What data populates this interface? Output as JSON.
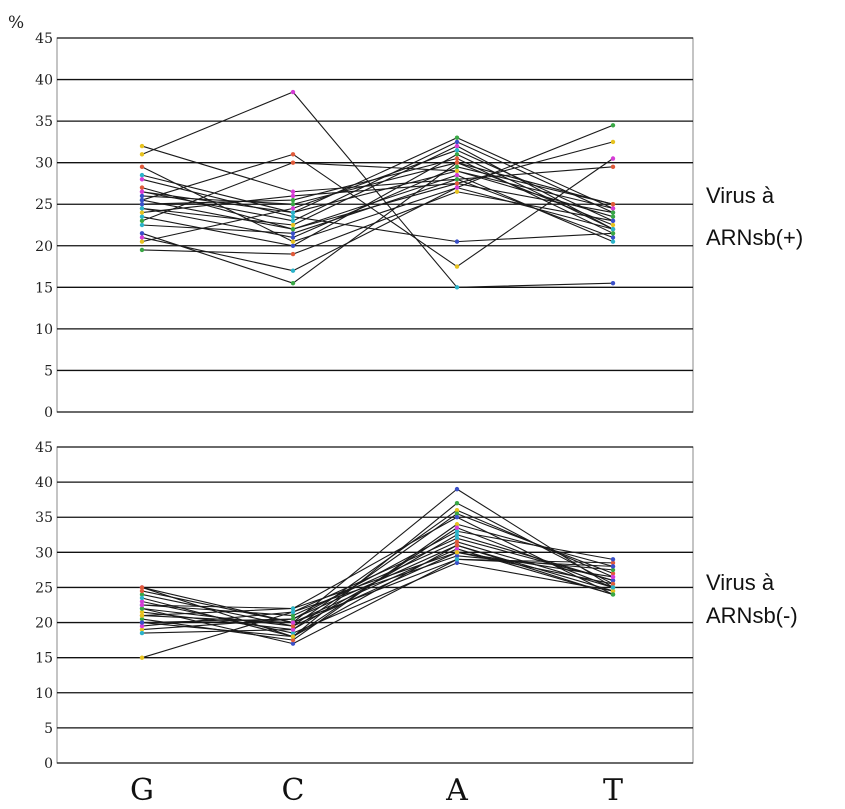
{
  "figure": {
    "unit_label": "%",
    "categories": [
      "G",
      "C",
      "A",
      "T"
    ]
  },
  "chart_data": [
    {
      "type": "line",
      "group_label": [
        "Virus à",
        "ARNsb(+)"
      ],
      "categories": [
        "G",
        "C",
        "A",
        "T"
      ],
      "ylim": [
        0,
        45
      ],
      "yticks": [
        0,
        5,
        10,
        15,
        20,
        25,
        30,
        35,
        40,
        45
      ],
      "grid": true,
      "marker_colors": [
        "#e6c21f",
        "#d63cd6",
        "#2bb3c9",
        "#3a4fc8",
        "#39a845",
        "#e05a3a"
      ],
      "series": [
        {
          "values": [
            31,
            38.5,
            15,
            15.5
          ]
        },
        {
          "values": [
            21,
            17,
            27,
            34.5
          ]
        },
        {
          "values": [
            28.5,
            24,
            33,
            24.5
          ]
        },
        {
          "values": [
            21.5,
            15.5,
            30,
            25
          ]
        },
        {
          "values": [
            25.5,
            31,
            17.5,
            30.5
          ]
        },
        {
          "values": [
            24.5,
            22.5,
            32,
            22
          ]
        },
        {
          "values": [
            32,
            26.5,
            28,
            21
          ]
        },
        {
          "values": [
            26.5,
            24,
            29,
            23.5
          ]
        },
        {
          "values": [
            23.5,
            20,
            31,
            22
          ]
        },
        {
          "values": [
            25,
            25.5,
            30.5,
            21.5
          ]
        },
        {
          "values": [
            19.5,
            19,
            26.5,
            23
          ]
        },
        {
          "values": [
            27,
            22,
            28.5,
            20.5
          ]
        },
        {
          "values": [
            24,
            26,
            27.5,
            24
          ]
        },
        {
          "values": [
            28,
            23.5,
            20.5,
            21.5
          ]
        },
        {
          "values": [
            22.5,
            21.5,
            28,
            29.5
          ]
        },
        {
          "values": [
            26,
            25,
            30,
            22.5
          ]
        },
        {
          "values": [
            23,
            30,
            29,
            24.5
          ]
        },
        {
          "values": [
            29.5,
            20.5,
            27,
            22
          ]
        },
        {
          "values": [
            20.5,
            24.5,
            31.5,
            23
          ]
        },
        {
          "values": [
            26.5,
            23,
            32.5,
            24
          ]
        },
        {
          "values": [
            24.5,
            21,
            29.5,
            25
          ]
        },
        {
          "values": [
            25.5,
            22,
            27.5,
            32.5
          ]
        }
      ]
    },
    {
      "type": "line",
      "group_label": [
        "Virus à",
        "ARNsb(-)"
      ],
      "categories": [
        "G",
        "C",
        "A",
        "T"
      ],
      "ylim": [
        0,
        45
      ],
      "yticks": [
        0,
        5,
        10,
        15,
        20,
        25,
        30,
        35,
        40,
        45
      ],
      "grid": true,
      "marker_colors": [
        "#e6c21f",
        "#d63cd6",
        "#2bb3c9",
        "#3a4fc8",
        "#39a845",
        "#e05a3a"
      ],
      "series": [
        {
          "values": [
            15,
            21.5,
            32,
            26
          ]
        },
        {
          "values": [
            25,
            20,
            39,
            25
          ]
        },
        {
          "values": [
            22,
            17,
            29,
            28.5
          ]
        },
        {
          "values": [
            20,
            18,
            31,
            24
          ]
        },
        {
          "values": [
            24,
            19.5,
            36,
            26.5
          ]
        },
        {
          "values": [
            21,
            22,
            30,
            25.5
          ]
        },
        {
          "values": [
            19,
            20.5,
            33,
            29
          ]
        },
        {
          "values": [
            23,
            18.5,
            28.5,
            24.5
          ]
        },
        {
          "values": [
            18.5,
            19,
            35.5,
            27
          ]
        },
        {
          "values": [
            22.5,
            21,
            31.5,
            25
          ]
        },
        {
          "values": [
            20.5,
            17.5,
            34,
            28
          ]
        },
        {
          "values": [
            24.5,
            20,
            30.5,
            24
          ]
        },
        {
          "values": [
            21.5,
            19,
            32.5,
            26
          ]
        },
        {
          "values": [
            19.5,
            21.5,
            29.5,
            27.5
          ]
        },
        {
          "values": [
            23.5,
            18,
            37,
            25.5
          ]
        },
        {
          "values": [
            20,
            20.5,
            31,
            24.5
          ]
        },
        {
          "values": [
            22,
            19.5,
            30,
            26.5
          ]
        },
        {
          "values": [
            25,
            18,
            33.5,
            25
          ]
        },
        {
          "values": [
            21,
            20,
            29,
            28
          ]
        },
        {
          "values": [
            22.5,
            22,
            35,
            24
          ]
        }
      ]
    }
  ]
}
